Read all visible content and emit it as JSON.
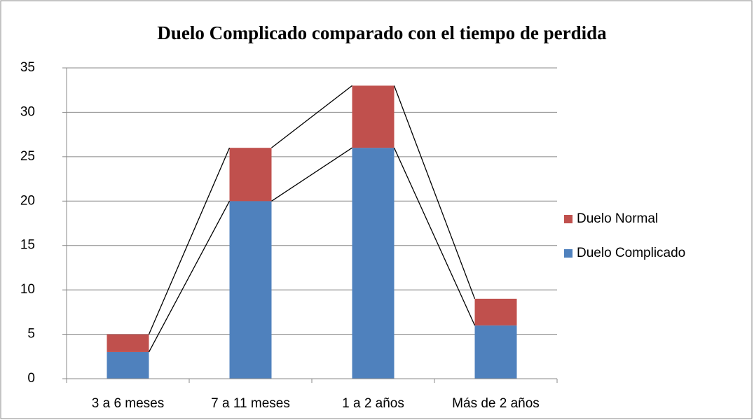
{
  "chart_data": {
    "type": "stacked_bar",
    "title": "Duelo Complicado comparado con el tiempo de perdida",
    "categories": [
      "3 a 6 meses",
      "7 a 11 meses",
      "1 a 2 años",
      "Más de 2 años"
    ],
    "series": [
      {
        "name": "Duelo Complicado",
        "color": "#4f81bd",
        "values": [
          3,
          20,
          26,
          6
        ]
      },
      {
        "name": "Duelo Normal",
        "color": "#c0504d",
        "values": [
          2,
          6,
          7,
          3
        ]
      }
    ],
    "ylim": [
      0,
      35
    ],
    "yticks": [
      0,
      5,
      10,
      15,
      20,
      25,
      30,
      35
    ],
    "grid": true,
    "legend": "right",
    "series_lines": true
  }
}
